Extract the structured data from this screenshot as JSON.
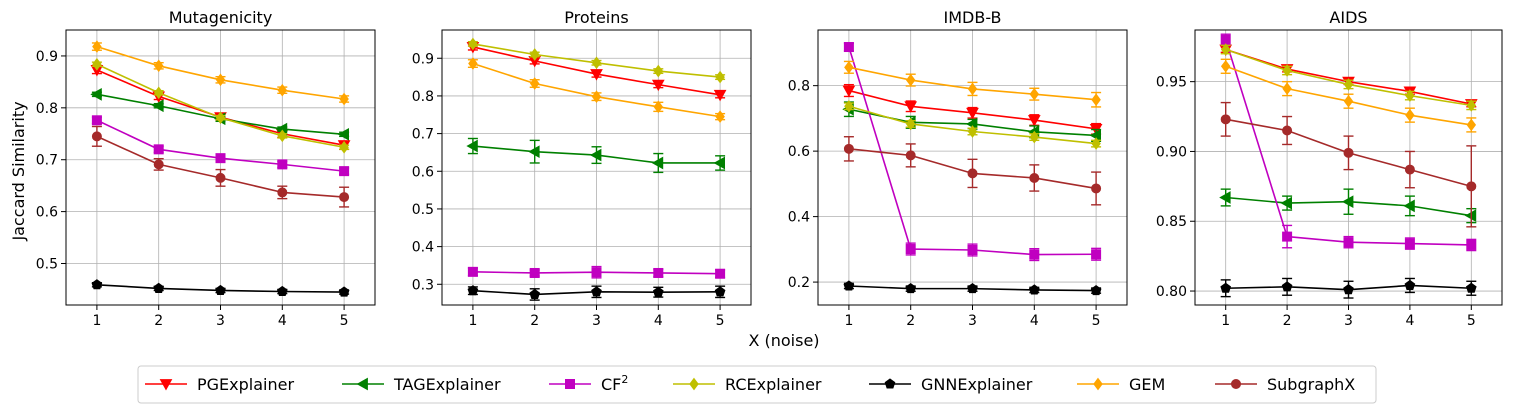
{
  "figure": {
    "xlabel": "X (noise)",
    "ylabel": "Jaccard Similarity"
  },
  "legend": {
    "placement": "bottom-center",
    "entries": [
      {
        "name": "PGExplainer",
        "color": "#ff0000",
        "marker": "triangle-down"
      },
      {
        "name": "TAGExplainer",
        "color": "#008000",
        "marker": "triangle-left"
      },
      {
        "name": "CF",
        "sup": "2",
        "color": "#c000c0",
        "marker": "square"
      },
      {
        "name": "RCExplainer",
        "color": "#bfbf00",
        "marker": "diamond"
      },
      {
        "name": "GNNExplainer",
        "color": "#000000",
        "marker": "pentagon"
      },
      {
        "name": "GEM",
        "color": "#ffa500",
        "marker": "diamond"
      },
      {
        "name": "SubgraphX",
        "color": "#a52a2a",
        "marker": "circle"
      }
    ]
  },
  "chart_data": [
    {
      "type": "line",
      "title": "Mutagenicity",
      "x": [
        1,
        2,
        3,
        4,
        5
      ],
      "xlim": [
        0.5,
        5.5
      ],
      "ylim": [
        0.42,
        0.95
      ],
      "yticks": [
        0.5,
        0.6,
        0.7,
        0.8,
        0.9
      ],
      "ytick_labels": [
        "0.5",
        "0.6",
        "0.7",
        "0.8",
        "0.9"
      ],
      "grid": true,
      "series": [
        {
          "name": "PGExplainer",
          "values": [
            0.873,
            0.822,
            0.782,
            0.75,
            0.728
          ],
          "err": [
            0.007,
            0.006,
            0.006,
            0.007,
            0.008
          ]
        },
        {
          "name": "TAGExplainer",
          "values": [
            0.826,
            0.804,
            0.779,
            0.759,
            0.749
          ],
          "err": [
            0.004,
            0.004,
            0.005,
            0.004,
            0.004
          ]
        },
        {
          "name": "CF",
          "values": [
            0.776,
            0.72,
            0.703,
            0.691,
            0.678
          ],
          "err": [
            0.006,
            0.006,
            0.006,
            0.006,
            0.006
          ]
        },
        {
          "name": "RCExplainer",
          "values": [
            0.884,
            0.829,
            0.781,
            0.746,
            0.724
          ],
          "err": [
            0.004,
            0.004,
            0.004,
            0.004,
            0.004
          ]
        },
        {
          "name": "GNNExplainer",
          "values": [
            0.459,
            0.452,
            0.448,
            0.446,
            0.445
          ],
          "err": [
            0.004,
            0.004,
            0.004,
            0.004,
            0.004
          ]
        },
        {
          "name": "GEM",
          "values": [
            0.918,
            0.881,
            0.854,
            0.834,
            0.817
          ],
          "err": [
            0.007,
            0.006,
            0.006,
            0.006,
            0.006
          ]
        },
        {
          "name": "SubgraphX",
          "values": [
            0.745,
            0.691,
            0.665,
            0.637,
            0.628
          ],
          "err": [
            0.019,
            0.011,
            0.016,
            0.012,
            0.019
          ]
        }
      ]
    },
    {
      "type": "line",
      "title": "Proteins",
      "x": [
        1,
        2,
        3,
        4,
        5
      ],
      "xlim": [
        0.5,
        5.5
      ],
      "ylim": [
        0.245,
        0.975
      ],
      "yticks": [
        0.3,
        0.4,
        0.5,
        0.6,
        0.7,
        0.8,
        0.9
      ],
      "ytick_labels": [
        "0.3",
        "0.4",
        "0.5",
        "0.6",
        "0.7",
        "0.8",
        "0.9"
      ],
      "grid": true,
      "series": [
        {
          "name": "PGExplainer",
          "values": [
            0.93,
            0.893,
            0.858,
            0.83,
            0.803
          ],
          "err": [
            0.008,
            0.008,
            0.008,
            0.008,
            0.008
          ]
        },
        {
          "name": "TAGExplainer",
          "values": [
            0.667,
            0.652,
            0.643,
            0.622,
            0.622
          ],
          "err": [
            0.02,
            0.03,
            0.022,
            0.025,
            0.019
          ]
        },
        {
          "name": "CF",
          "values": [
            0.333,
            0.33,
            0.332,
            0.33,
            0.328
          ],
          "err": [
            0.01,
            0.008,
            0.015,
            0.01,
            0.01
          ]
        },
        {
          "name": "RCExplainer",
          "values": [
            0.938,
            0.91,
            0.888,
            0.866,
            0.85
          ],
          "err": [
            0.006,
            0.006,
            0.006,
            0.006,
            0.006
          ]
        },
        {
          "name": "GNNExplainer",
          "values": [
            0.283,
            0.273,
            0.28,
            0.279,
            0.28
          ],
          "err": [
            0.01,
            0.015,
            0.015,
            0.013,
            0.015
          ]
        },
        {
          "name": "GEM",
          "values": [
            0.886,
            0.833,
            0.798,
            0.771,
            0.745
          ],
          "err": [
            0.01,
            0.01,
            0.01,
            0.012,
            0.008
          ]
        }
      ]
    },
    {
      "type": "line",
      "title": "IMDB-B",
      "x": [
        1,
        2,
        3,
        4,
        5
      ],
      "xlim": [
        0.5,
        5.5
      ],
      "ylim": [
        0.13,
        0.97
      ],
      "yticks": [
        0.2,
        0.4,
        0.6,
        0.8
      ],
      "ytick_labels": [
        "0.2",
        "0.4",
        "0.6",
        "0.8"
      ],
      "grid": true,
      "series": [
        {
          "name": "PGExplainer",
          "values": [
            0.785,
            0.737,
            0.717,
            0.695,
            0.668
          ],
          "err": [
            0.018,
            0.016,
            0.016,
            0.016,
            0.016
          ]
        },
        {
          "name": "TAGExplainer",
          "values": [
            0.728,
            0.688,
            0.683,
            0.659,
            0.648
          ],
          "err": [
            0.022,
            0.018,
            0.014,
            0.018,
            0.018
          ]
        },
        {
          "name": "CF",
          "values": [
            0.918,
            0.301,
            0.298,
            0.284,
            0.285
          ],
          "err": [
            0.012,
            0.018,
            0.018,
            0.018,
            0.018
          ]
        },
        {
          "name": "RCExplainer",
          "values": [
            0.737,
            0.683,
            0.66,
            0.643,
            0.623
          ],
          "err": [
            0.01,
            0.01,
            0.01,
            0.01,
            0.01
          ]
        },
        {
          "name": "GNNExplainer",
          "values": [
            0.188,
            0.18,
            0.18,
            0.176,
            0.174
          ],
          "err": [
            0.008,
            0.008,
            0.008,
            0.008,
            0.008
          ]
        },
        {
          "name": "GEM",
          "values": [
            0.856,
            0.817,
            0.79,
            0.774,
            0.757
          ],
          "err": [
            0.018,
            0.018,
            0.02,
            0.018,
            0.022
          ]
        },
        {
          "name": "SubgraphX",
          "values": [
            0.607,
            0.587,
            0.532,
            0.518,
            0.486
          ],
          "err": [
            0.037,
            0.035,
            0.043,
            0.04,
            0.05
          ]
        }
      ]
    },
    {
      "type": "line",
      "title": "AIDS",
      "x": [
        1,
        2,
        3,
        4,
        5
      ],
      "xlim": [
        0.5,
        5.5
      ],
      "ylim": [
        0.79,
        0.987
      ],
      "yticks": [
        0.8,
        0.85,
        0.9,
        0.95
      ],
      "ytick_labels": [
        "0.80",
        "0.85",
        "0.90",
        "0.95"
      ],
      "grid": true,
      "series": [
        {
          "name": "PGExplainer",
          "values": [
            0.973,
            0.959,
            0.95,
            0.943,
            0.934
          ],
          "err": [
            0.002,
            0.002,
            0.002,
            0.002,
            0.002
          ]
        },
        {
          "name": "TAGExplainer",
          "values": [
            0.867,
            0.863,
            0.864,
            0.861,
            0.854
          ],
          "err": [
            0.006,
            0.005,
            0.009,
            0.007,
            0.005
          ]
        },
        {
          "name": "CF",
          "values": [
            0.98,
            0.839,
            0.835,
            0.834,
            0.833
          ],
          "err": [
            0.004,
            0.008,
            0.004,
            0.004,
            0.004
          ]
        },
        {
          "name": "RCExplainer",
          "values": [
            0.973,
            0.958,
            0.948,
            0.94,
            0.933
          ],
          "err": [
            0.003,
            0.003,
            0.003,
            0.003,
            0.003
          ]
        },
        {
          "name": "GNNExplainer",
          "values": [
            0.802,
            0.803,
            0.801,
            0.804,
            0.802
          ],
          "err": [
            0.006,
            0.006,
            0.006,
            0.005,
            0.005
          ]
        },
        {
          "name": "GEM",
          "values": [
            0.961,
            0.945,
            0.936,
            0.926,
            0.919
          ],
          "err": [
            0.005,
            0.005,
            0.005,
            0.005,
            0.005
          ]
        },
        {
          "name": "SubgraphX",
          "values": [
            0.923,
            0.915,
            0.899,
            0.887,
            0.875
          ],
          "err": [
            0.012,
            0.01,
            0.012,
            0.013,
            0.029
          ]
        }
      ]
    }
  ]
}
